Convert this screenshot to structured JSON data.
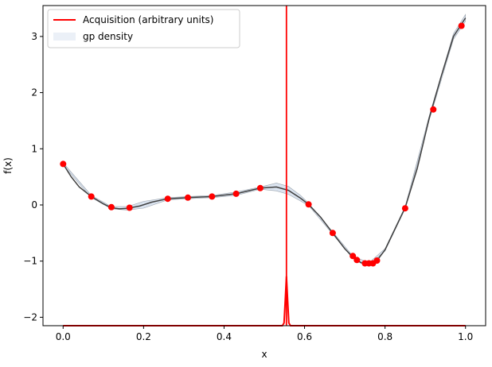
{
  "chart_data": {
    "type": "line",
    "title": "",
    "xlabel": "x",
    "ylabel": "f(x)",
    "xlim": [
      -0.05,
      1.05
    ],
    "ylim": [
      -2.15,
      3.55
    ],
    "xticks": [
      0.0,
      0.2,
      0.4,
      0.6,
      0.8,
      1.0
    ],
    "xtick_labels": [
      "0.0",
      "0.2",
      "0.4",
      "0.6",
      "0.8",
      "1.0"
    ],
    "yticks": [
      -2,
      -1,
      0,
      1,
      2,
      3
    ],
    "ytick_labels": [
      "−2",
      "−1",
      "0",
      "1",
      "2",
      "3"
    ],
    "grid": false,
    "legend_position": "top-left",
    "legend": [
      {
        "label": "Acquisition (arbitrary units)",
        "color": "#ff0000",
        "kind": "line"
      },
      {
        "label": "gp density",
        "color": "#b0c4de",
        "kind": "patch"
      }
    ],
    "gp_mean": {
      "color": "#404040",
      "x": [
        0.0,
        0.02,
        0.04,
        0.07,
        0.1,
        0.12,
        0.14,
        0.16,
        0.19,
        0.22,
        0.26,
        0.31,
        0.37,
        0.43,
        0.49,
        0.53,
        0.56,
        0.59,
        0.61,
        0.64,
        0.67,
        0.7,
        0.72,
        0.74,
        0.76,
        0.78,
        0.8,
        0.83,
        0.85,
        0.88,
        0.91,
        0.94,
        0.97,
        1.0
      ],
      "y": [
        0.73,
        0.5,
        0.32,
        0.15,
        0.02,
        -0.05,
        -0.07,
        -0.06,
        -0.02,
        0.05,
        0.11,
        0.13,
        0.15,
        0.2,
        0.3,
        0.32,
        0.26,
        0.12,
        0.01,
        -0.22,
        -0.5,
        -0.78,
        -0.93,
        -1.03,
        -1.05,
        -0.99,
        -0.8,
        -0.35,
        -0.05,
        0.65,
        1.55,
        2.3,
        3.0,
        3.33
      ]
    },
    "gp_band": {
      "color": "#b0c4de",
      "x": [
        0.0,
        0.07,
        0.12,
        0.16,
        0.2,
        0.26,
        0.31,
        0.37,
        0.43,
        0.49,
        0.53,
        0.56,
        0.59,
        0.61,
        0.67,
        0.72,
        0.76,
        0.8,
        0.85,
        0.91,
        0.97,
        1.0
      ],
      "half_width": [
        0.02,
        0.02,
        0.02,
        0.03,
        0.06,
        0.02,
        0.02,
        0.02,
        0.03,
        0.02,
        0.07,
        0.07,
        0.05,
        0.02,
        0.02,
        0.02,
        0.02,
        0.02,
        0.02,
        0.04,
        0.05,
        0.06
      ]
    },
    "observations": {
      "color": "#ff0000",
      "x": [
        0.0,
        0.07,
        0.12,
        0.165,
        0.26,
        0.31,
        0.37,
        0.43,
        0.49,
        0.61,
        0.67,
        0.72,
        0.73,
        0.75,
        0.76,
        0.77,
        0.78,
        0.85,
        0.92,
        0.99
      ],
      "y": [
        0.73,
        0.15,
        -0.04,
        -0.05,
        0.11,
        0.13,
        0.15,
        0.2,
        0.3,
        0.01,
        -0.5,
        -0.91,
        -0.98,
        -1.04,
        -1.04,
        -1.04,
        -0.99,
        -0.06,
        1.7,
        3.19
      ]
    },
    "acquisition": {
      "color": "#ff0000",
      "x": [
        0.0,
        0.545,
        0.549,
        0.552,
        0.555,
        0.558,
        0.561,
        0.565,
        1.0
      ],
      "y": [
        -2.15,
        -2.15,
        -2.1,
        -1.7,
        -1.27,
        -1.7,
        -2.1,
        -2.15,
        -2.15
      ],
      "vline_x": 0.555
    }
  }
}
